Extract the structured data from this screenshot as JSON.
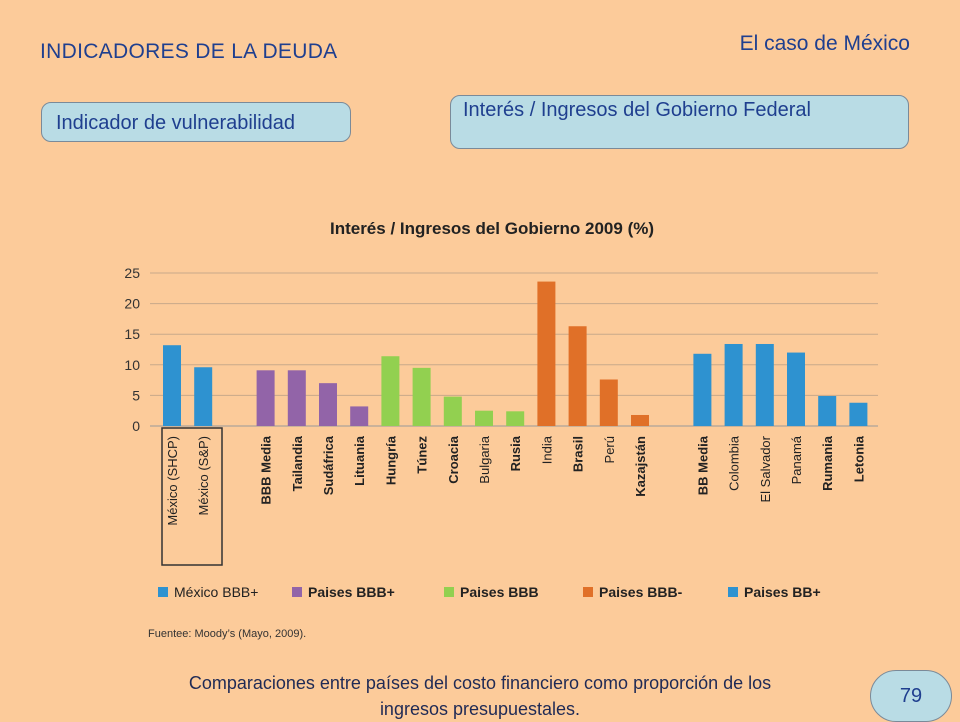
{
  "header": {
    "title_left": "INDICADORES DE LA DEUDA",
    "title_right": "El caso de México"
  },
  "labels": {
    "indicator": "Indicador de vulnerabilidad",
    "metric": "Interés / Ingresos del Gobierno Federal"
  },
  "source": "Fuentee: Moody’s (Mayo, 2009).",
  "footer": {
    "caption_line1": "Comparaciones entre países del costo financiero como proporción de los",
    "caption_line2": "ingresos presupuestales.",
    "page_number": "79"
  },
  "chart_data": {
    "type": "bar",
    "title": "Interés / Ingresos del Gobierno 2009 (%)",
    "ylim": [
      0,
      25
    ],
    "yticks": [
      0,
      5,
      10,
      15,
      20,
      25
    ],
    "grid": true,
    "legend_position": "bottom",
    "categories": [
      "México (SHCP)",
      "México (S&P)",
      "",
      "BBB Media",
      "Tailandia",
      "Sudáfrica",
      "Lituania",
      "Hungría",
      "Túnez",
      "Croacia",
      "Bulgaria",
      "Rusia",
      "India",
      "Brasil",
      "Perú",
      "Kazajstán",
      "",
      "BB Media",
      "Colombia",
      "El Salvador",
      "Panamá",
      "Rumania",
      "Letonia"
    ],
    "values": [
      13.2,
      9.6,
      null,
      9.1,
      9.1,
      7.0,
      3.2,
      11.4,
      9.5,
      4.8,
      2.5,
      2.4,
      23.6,
      16.3,
      7.6,
      1.8,
      null,
      11.8,
      13.4,
      13.4,
      12.0,
      4.9,
      3.8
    ],
    "groups": [
      0,
      0,
      -1,
      1,
      1,
      1,
      1,
      2,
      2,
      2,
      2,
      2,
      3,
      3,
      3,
      3,
      -1,
      4,
      4,
      4,
      4,
      4,
      4
    ],
    "series": [
      {
        "name": "México BBB+",
        "color": "#2E92D0"
      },
      {
        "name": "Paises BBB+",
        "color": "#9264A8"
      },
      {
        "name": "Paises BBB",
        "color": "#92D050"
      },
      {
        "name": "Paises BBB-",
        "color": "#E07028"
      },
      {
        "name": "Paises BB+",
        "color": "#2E92D0"
      }
    ],
    "highlighted_categories": [
      "México (SHCP)",
      "México (S&P)"
    ]
  }
}
